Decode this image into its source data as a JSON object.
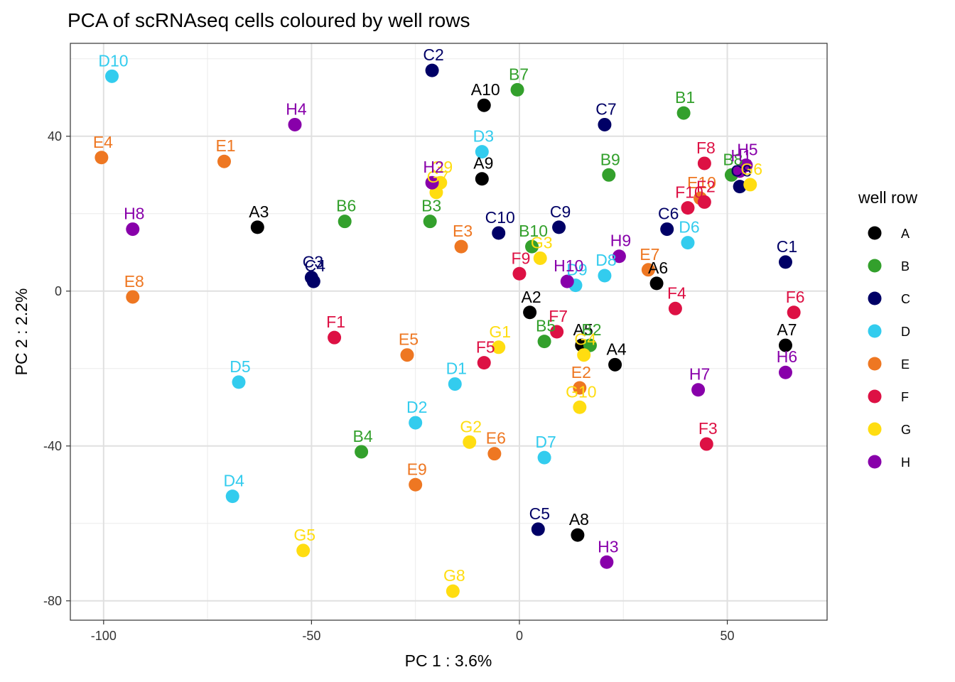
{
  "chart_data": {
    "type": "scatter",
    "title": "PCA of scRNAseq cells coloured by well rows",
    "xlabel": "PC 1 : 3.6%",
    "ylabel": "PC 2 : 2.2%",
    "xlim": [
      -108,
      74
    ],
    "ylim": [
      -85,
      64
    ],
    "xticks": [
      -100,
      -50,
      0,
      50
    ],
    "yticks": [
      -80,
      -40,
      0,
      40
    ],
    "grid": true,
    "legend": {
      "title": "well row",
      "position": "right",
      "entries": [
        "A",
        "B",
        "C",
        "D",
        "E",
        "F",
        "G",
        "H"
      ]
    },
    "colors": {
      "A": "#000000",
      "B": "#33a02c",
      "C": "#000066",
      "D": "#33ccee",
      "E": "#ee7722",
      "F": "#dd1144",
      "G": "#ffdd11",
      "H": "#8800aa"
    },
    "points": [
      {
        "label": "A2",
        "row": "A",
        "x": 2.5,
        "y": -5.5
      },
      {
        "label": "A3",
        "row": "A",
        "x": -63,
        "y": 16.5
      },
      {
        "label": "A4",
        "row": "A",
        "x": 23,
        "y": -19
      },
      {
        "label": "A5",
        "row": "A",
        "x": 15,
        "y": -14
      },
      {
        "label": "A6",
        "row": "A",
        "x": 33,
        "y": 2
      },
      {
        "label": "A7",
        "row": "A",
        "x": 64,
        "y": -14
      },
      {
        "label": "A8",
        "row": "A",
        "x": 14,
        "y": -63
      },
      {
        "label": "A9",
        "row": "A",
        "x": -9,
        "y": 29
      },
      {
        "label": "A10",
        "row": "A",
        "x": -8.5,
        "y": 48
      },
      {
        "label": "B1",
        "row": "B",
        "x": 39.5,
        "y": 46
      },
      {
        "label": "B2",
        "row": "B",
        "x": 17,
        "y": -14
      },
      {
        "label": "B3",
        "row": "B",
        "x": -21.5,
        "y": 18
      },
      {
        "label": "B4",
        "row": "B",
        "x": -38,
        "y": -41.5
      },
      {
        "label": "B5",
        "row": "B",
        "x": 6,
        "y": -13
      },
      {
        "label": "B6",
        "row": "B",
        "x": -42,
        "y": 18
      },
      {
        "label": "B7",
        "row": "B",
        "x": -0.5,
        "y": 52
      },
      {
        "label": "B8",
        "row": "B",
        "x": 51,
        "y": 30
      },
      {
        "label": "B9",
        "row": "B",
        "x": 21.5,
        "y": 30
      },
      {
        "label": "B10",
        "row": "B",
        "x": 3,
        "y": 11.5
      },
      {
        "label": "C1",
        "row": "C",
        "x": 64,
        "y": 7.5
      },
      {
        "label": "C2",
        "row": "C",
        "x": -21,
        "y": 57
      },
      {
        "label": "C3",
        "row": "C",
        "x": -50,
        "y": 3.5
      },
      {
        "label": "C4",
        "row": "C",
        "x": -49.5,
        "y": 2.5
      },
      {
        "label": "C5",
        "row": "C",
        "x": 4.5,
        "y": -61.5
      },
      {
        "label": "C6",
        "row": "C",
        "x": 35.5,
        "y": 16
      },
      {
        "label": "C7",
        "row": "C",
        "x": 20.5,
        "y": 43
      },
      {
        "label": "C8",
        "row": "C",
        "x": 53,
        "y": 27
      },
      {
        "label": "C9",
        "row": "C",
        "x": 9.5,
        "y": 16.5
      },
      {
        "label": "C10",
        "row": "C",
        "x": -5,
        "y": 15
      },
      {
        "label": "D1",
        "row": "D",
        "x": -15.5,
        "y": -24
      },
      {
        "label": "D2",
        "row": "D",
        "x": -25,
        "y": -34
      },
      {
        "label": "D3",
        "row": "D",
        "x": -9,
        "y": 36
      },
      {
        "label": "D4",
        "row": "D",
        "x": -69,
        "y": -53
      },
      {
        "label": "D5",
        "row": "D",
        "x": -67.5,
        "y": -23.5
      },
      {
        "label": "D6",
        "row": "D",
        "x": 40.5,
        "y": 12.5
      },
      {
        "label": "D7",
        "row": "D",
        "x": 6,
        "y": -43
      },
      {
        "label": "D8",
        "row": "D",
        "x": 20.5,
        "y": 4
      },
      {
        "label": "D9",
        "row": "D",
        "x": 13.5,
        "y": 1.5
      },
      {
        "label": "D10",
        "row": "D",
        "x": -98,
        "y": 55.5
      },
      {
        "label": "E1",
        "row": "E",
        "x": -71,
        "y": 33.5
      },
      {
        "label": "E2",
        "row": "E",
        "x": 14.5,
        "y": -25
      },
      {
        "label": "E3",
        "row": "E",
        "x": -14,
        "y": 11.5
      },
      {
        "label": "E4",
        "row": "E",
        "x": -100.5,
        "y": 34.5
      },
      {
        "label": "E5",
        "row": "E",
        "x": -27,
        "y": -16.5
      },
      {
        "label": "E6",
        "row": "E",
        "x": -6,
        "y": -42
      },
      {
        "label": "E7",
        "row": "E",
        "x": 31,
        "y": 5.5
      },
      {
        "label": "E8",
        "row": "E",
        "x": -93,
        "y": -1.5
      },
      {
        "label": "E9",
        "row": "E",
        "x": -25,
        "y": -50
      },
      {
        "label": "E10",
        "row": "E",
        "x": 43.5,
        "y": 24
      },
      {
        "label": "F1",
        "row": "F",
        "x": -44.5,
        "y": -12
      },
      {
        "label": "F2",
        "row": "F",
        "x": 44.5,
        "y": 23
      },
      {
        "label": "F3",
        "row": "F",
        "x": 45,
        "y": -39.5
      },
      {
        "label": "F4",
        "row": "F",
        "x": 37.5,
        "y": -4.5
      },
      {
        "label": "F5",
        "row": "F",
        "x": -8.5,
        "y": -18.5
      },
      {
        "label": "F6",
        "row": "F",
        "x": 66,
        "y": -5.5
      },
      {
        "label": "F7",
        "row": "F",
        "x": 9,
        "y": -10.5
      },
      {
        "label": "F8",
        "row": "F",
        "x": 44.5,
        "y": 33
      },
      {
        "label": "F9",
        "row": "F",
        "x": 0,
        "y": 4.5
      },
      {
        "label": "F10",
        "row": "F",
        "x": 40.5,
        "y": 21.5
      },
      {
        "label": "G1",
        "row": "G",
        "x": -5,
        "y": -14.5
      },
      {
        "label": "G2",
        "row": "G",
        "x": -12,
        "y": -39
      },
      {
        "label": "G3",
        "row": "G",
        "x": 5,
        "y": 8.5
      },
      {
        "label": "G4",
        "row": "G",
        "x": 15.5,
        "y": -16.5
      },
      {
        "label": "G5",
        "row": "G",
        "x": -52,
        "y": -67
      },
      {
        "label": "G6",
        "row": "G",
        "x": 55.5,
        "y": 27.5
      },
      {
        "label": "G7",
        "row": "G",
        "x": -20,
        "y": 25.5
      },
      {
        "label": "G8",
        "row": "G",
        "x": -16,
        "y": -77.5
      },
      {
        "label": "G9",
        "row": "G",
        "x": -19,
        "y": 28
      },
      {
        "label": "G10",
        "row": "G",
        "x": 14.5,
        "y": -30
      },
      {
        "label": "H1",
        "row": "H",
        "x": 53,
        "y": 31
      },
      {
        "label": "H2",
        "row": "H",
        "x": -21,
        "y": 28
      },
      {
        "label": "H3",
        "row": "H",
        "x": 21,
        "y": -70
      },
      {
        "label": "H4",
        "row": "H",
        "x": -54,
        "y": 43
      },
      {
        "label": "H5",
        "row": "H",
        "x": 54.5,
        "y": 32.5
      },
      {
        "label": "H6",
        "row": "H",
        "x": 64,
        "y": -21
      },
      {
        "label": "H7",
        "row": "H",
        "x": 43,
        "y": -25.5
      },
      {
        "label": "H8",
        "row": "H",
        "x": -93,
        "y": 16
      },
      {
        "label": "H9",
        "row": "H",
        "x": 24,
        "y": 9
      },
      {
        "label": "H10",
        "row": "H",
        "x": 11.5,
        "y": 2.5
      }
    ]
  }
}
